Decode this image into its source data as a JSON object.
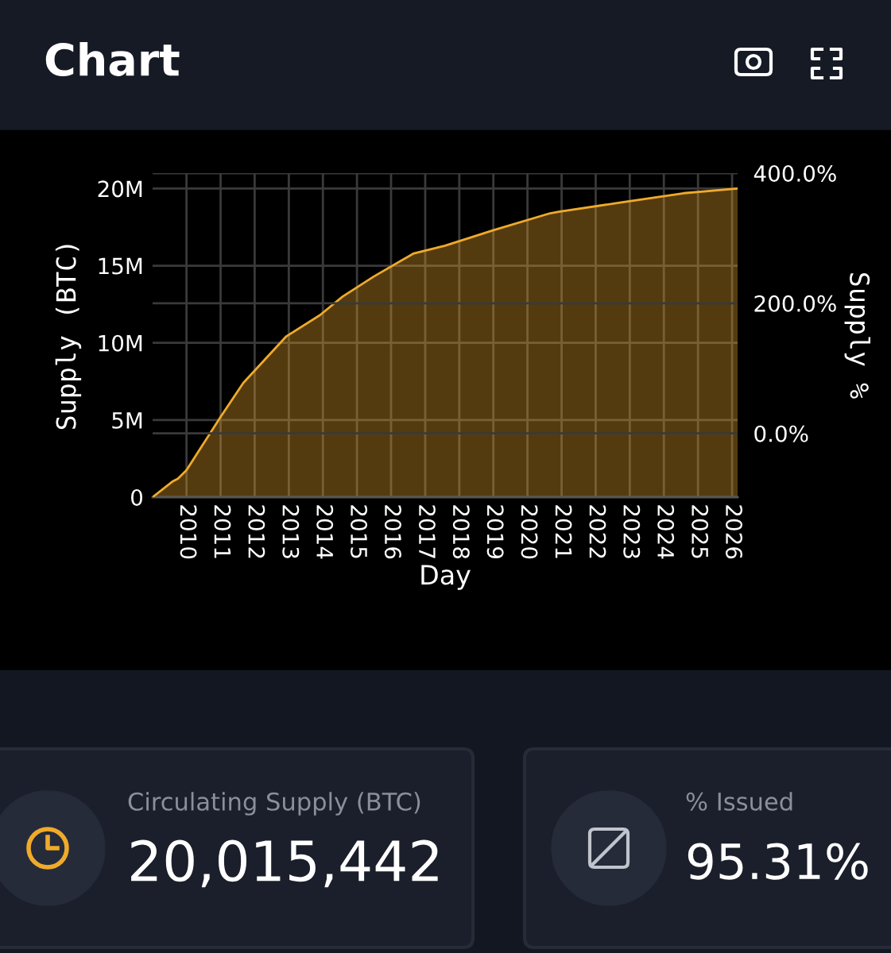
{
  "chart_data": [
    {
      "type": "area",
      "title": "Chart",
      "xlabel": "Day",
      "ylabel": "Supply (BTC)",
      "y2label": "Supply %",
      "x": [
        "2009-01-03",
        "2009-08",
        "2009-10",
        "2010-01",
        "2011-01",
        "2011-09",
        "2012-12",
        "2013-12",
        "2014-08",
        "2015-07",
        "2016-09",
        "2017-08",
        "2019-01",
        "2020-09",
        "2020-12",
        "2022-10",
        "2024-08",
        "2026-03"
      ],
      "series": [
        {
          "color": "#f0aa2a",
          "values": [
            0,
            1000000,
            1200000,
            1750000,
            5200000,
            7400000,
            10400000,
            11800000,
            13000000,
            14300000,
            15800000,
            16300000,
            17300000,
            18400000,
            18500000,
            19100000,
            19700000,
            20000000
          ]
        }
      ],
      "xlim": [
        "2009-01-03",
        "2026-03"
      ],
      "xticks": [
        {
          "value": "2010-01-01",
          "label": "2010"
        },
        {
          "value": "2011-01-01",
          "label": "2011"
        },
        {
          "value": "2012-01-01",
          "label": "2012"
        },
        {
          "value": "2013-01-01",
          "label": "2013"
        },
        {
          "value": "2014-01-01",
          "label": "2014"
        },
        {
          "value": "2015-01-01",
          "label": "2015"
        },
        {
          "value": "2016-01-01",
          "label": "2016"
        },
        {
          "value": "2017-01-01",
          "label": "2017"
        },
        {
          "value": "2018-01-01",
          "label": "2018"
        },
        {
          "value": "2019-01-01",
          "label": "2019"
        },
        {
          "value": "2020-01-01",
          "label": "2020"
        },
        {
          "value": "2021-01-01",
          "label": "2021"
        },
        {
          "value": "2022-01-01",
          "label": "2022"
        },
        {
          "value": "2023-01-01",
          "label": "2023"
        },
        {
          "value": "2024-01-01",
          "label": "2024"
        },
        {
          "value": "2025-01-01",
          "label": "2025"
        },
        {
          "value": "2026-01-01",
          "label": "2026"
        }
      ],
      "ylim": [
        0,
        21000000
      ],
      "yticks": [
        0,
        {
          "value": 5000000,
          "label": "5M"
        },
        {
          "value": 10000000,
          "label": "10M"
        },
        {
          "value": 15000000,
          "label": "15M"
        },
        {
          "value": 20000000,
          "label": "20M"
        }
      ],
      "y2lim": [
        -98,
        400
      ],
      "y2ticks": [
        {
          "value": 0,
          "label": "0.0%"
        },
        {
          "value": 200,
          "label": "200.0%"
        },
        {
          "value": 400,
          "label": "400.0%"
        }
      ],
      "grid": true
    },
    {
      "type": "other",
      "annotations": [
        "Circulating Supply (BTC)",
        "20,015,442",
        "% Issued",
        "95.31%"
      ]
    }
  ]
}
